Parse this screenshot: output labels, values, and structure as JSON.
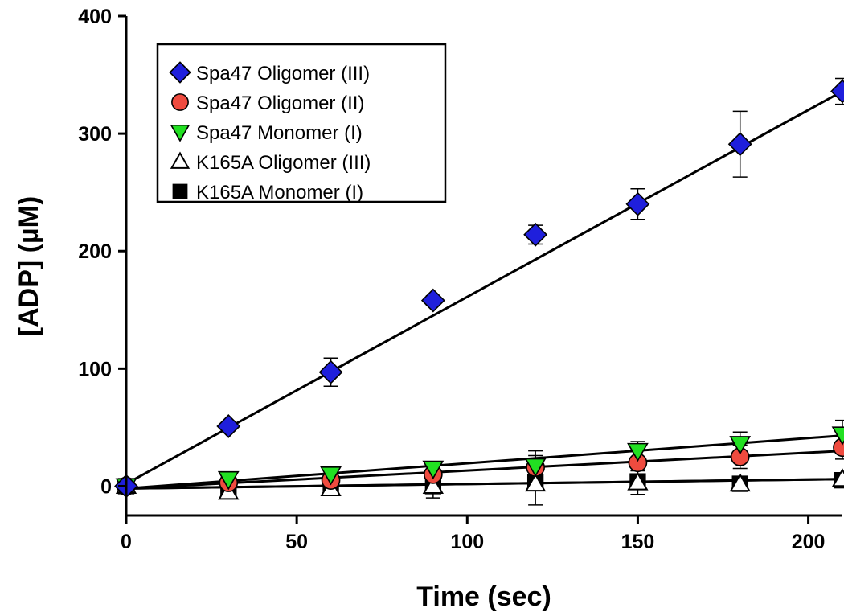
{
  "chart_data": {
    "type": "scatter",
    "xlabel": "Time (sec)",
    "ylabel": "[ADP] (µM)",
    "xlim": [
      0,
      210
    ],
    "ylim": [
      -25,
      400
    ],
    "xticks": [
      0,
      50,
      100,
      150,
      200
    ],
    "yticks": [
      0,
      100,
      200,
      300,
      400
    ],
    "grid": false,
    "legend_position": "top-left",
    "series": [
      {
        "name": "Spa47 Oligomer (III)",
        "marker": "diamond",
        "color": "#1f1fdc",
        "x": [
          0,
          30,
          60,
          90,
          120,
          150,
          180,
          210
        ],
        "y": [
          0,
          51,
          97,
          158,
          214,
          240,
          291,
          336
        ],
        "err": [
          2,
          4,
          12,
          4,
          8,
          13,
          28,
          11
        ],
        "fit": [
          2,
          336
        ]
      },
      {
        "name": "Spa47 Oligomer (II)",
        "marker": "circle",
        "color": "#ef4b3f",
        "x": [
          0,
          30,
          60,
          90,
          120,
          150,
          180,
          210
        ],
        "y": [
          0,
          3,
          5,
          10,
          16,
          20,
          25,
          33
        ],
        "err": [
          2,
          3,
          4,
          7,
          10,
          13,
          10,
          10
        ],
        "fit": [
          -2,
          30
        ]
      },
      {
        "name": "Spa47 Monomer (I)",
        "marker": "triangle-down",
        "color": "#22e022",
        "x": [
          0,
          30,
          60,
          90,
          120,
          150,
          180,
          210
        ],
        "y": [
          0,
          6,
          10,
          15,
          17,
          30,
          36,
          44
        ],
        "err": [
          2,
          3,
          4,
          6,
          13,
          8,
          10,
          12
        ],
        "fit": [
          -2,
          43
        ]
      },
      {
        "name": "K165A Oligomer (III)",
        "marker": "triangle-up-open",
        "color": "#000000",
        "x": [
          0,
          30,
          60,
          90,
          120,
          150,
          180,
          210
        ],
        "y": [
          0,
          -5,
          -2,
          0,
          2,
          3,
          2,
          6
        ],
        "err": [
          2,
          3,
          5,
          10,
          18,
          10,
          4,
          4
        ],
        "fit": [
          -2,
          6
        ]
      },
      {
        "name": "K165A Monomer (I)",
        "marker": "square",
        "color": "#000000",
        "x": [
          0,
          30,
          60,
          90,
          120,
          150,
          180,
          210
        ],
        "y": [
          0,
          -4,
          0,
          0,
          3,
          4,
          2,
          5
        ],
        "err": [
          2,
          3,
          4,
          5,
          6,
          6,
          3,
          3
        ],
        "fit": [
          -2,
          6
        ]
      }
    ]
  }
}
